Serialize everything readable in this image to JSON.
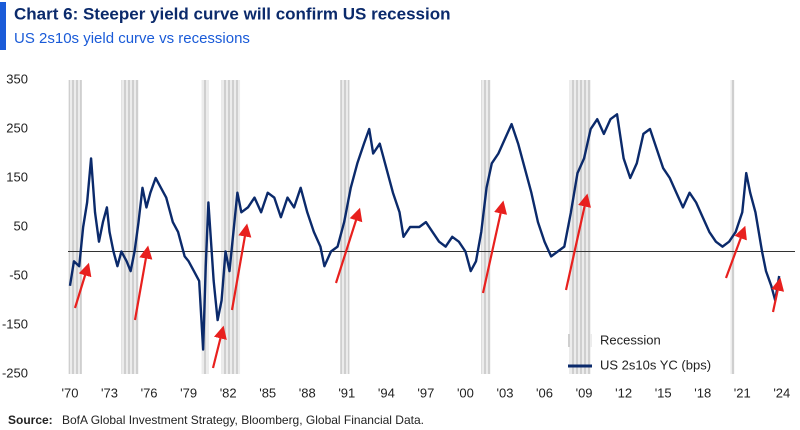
{
  "chart_data": {
    "type": "line",
    "title": "Chart 6: Steeper yield curve will confirm US recession",
    "subtitle": "US 2s10s yield curve vs recessions",
    "source_label": "Source:",
    "source": "BofA Global Investment Strategy, Bloomberg, Global Financial Data.",
    "xlim": [
      1969.85,
      2025.0
    ],
    "xticks": [
      {
        "value": 1970,
        "label": "'70"
      },
      {
        "value": 1973,
        "label": "'73"
      },
      {
        "value": 1976,
        "label": "'76"
      },
      {
        "value": 1979,
        "label": "'79"
      },
      {
        "value": 1982,
        "label": "'82"
      },
      {
        "value": 1985,
        "label": "'85"
      },
      {
        "value": 1988,
        "label": "'88"
      },
      {
        "value": 1991,
        "label": "'91"
      },
      {
        "value": 1994,
        "label": "'94"
      },
      {
        "value": 1997,
        "label": "'97"
      },
      {
        "value": 2000,
        "label": "'00"
      },
      {
        "value": 2003,
        "label": "'03"
      },
      {
        "value": 2006,
        "label": "'06"
      },
      {
        "value": 2009,
        "label": "'09"
      },
      {
        "value": 2012,
        "label": "'12"
      },
      {
        "value": 2015,
        "label": "'15"
      },
      {
        "value": 2018,
        "label": "'18"
      },
      {
        "value": 2021,
        "label": "'21"
      },
      {
        "value": 2024,
        "label": "'24"
      }
    ],
    "ylim": [
      -250,
      350
    ],
    "yticks": [
      -250,
      -150,
      -50,
      50,
      150,
      250,
      350
    ],
    "reference_line": 0,
    "recessions": {
      "name": "Recession",
      "color": "#d4d4d4",
      "periods": [
        [
          1969.9,
          1970.9
        ],
        [
          1973.9,
          1975.2
        ],
        [
          1980.0,
          1980.5
        ],
        [
          1981.5,
          1982.9
        ],
        [
          1990.5,
          1991.2
        ],
        [
          2001.2,
          2001.9
        ],
        [
          2007.9,
          2009.5
        ],
        [
          2020.1,
          2020.4
        ]
      ]
    },
    "x": [
      1970.0,
      1970.3,
      1970.7,
      1971.0,
      1971.3,
      1971.6,
      1971.9,
      1972.2,
      1972.5,
      1972.8,
      1973.0,
      1973.3,
      1973.6,
      1973.9,
      1974.3,
      1974.6,
      1974.9,
      1975.2,
      1975.5,
      1975.8,
      1976.1,
      1976.5,
      1976.9,
      1977.3,
      1977.8,
      1978.2,
      1978.7,
      1979.0,
      1979.4,
      1979.8,
      1980.1,
      1980.3,
      1980.5,
      1980.7,
      1980.9,
      1981.2,
      1981.5,
      1981.8,
      1982.1,
      1982.4,
      1982.7,
      1983.0,
      1983.5,
      1984.0,
      1984.5,
      1985.0,
      1985.5,
      1986.0,
      1986.5,
      1987.0,
      1987.5,
      1988.0,
      1988.5,
      1989.0,
      1989.3,
      1989.8,
      1990.3,
      1990.8,
      1991.3,
      1991.8,
      1992.3,
      1992.7,
      1993.0,
      1993.5,
      1994.0,
      1994.5,
      1995.0,
      1995.3,
      1995.8,
      1996.5,
      1997.0,
      1997.5,
      1998.0,
      1998.5,
      1999.0,
      1999.5,
      2000.0,
      2000.4,
      2000.8,
      2001.2,
      2001.6,
      2002.0,
      2002.5,
      2003.0,
      2003.5,
      2004.0,
      2004.5,
      2005.0,
      2005.5,
      2006.0,
      2006.5,
      2007.0,
      2007.5,
      2008.0,
      2008.5,
      2009.0,
      2009.5,
      2010.0,
      2010.5,
      2011.0,
      2011.5,
      2012.0,
      2012.5,
      2013.0,
      2013.5,
      2014.0,
      2014.5,
      2015.0,
      2015.5,
      2016.0,
      2016.5,
      2017.0,
      2017.5,
      2018.0,
      2018.5,
      2019.0,
      2019.5,
      2020.0,
      2020.5,
      2021.0,
      2021.3,
      2021.6,
      2022.0,
      2022.5,
      2022.8,
      2023.2,
      2023.5,
      2023.8
    ],
    "series": [
      {
        "name": "US 2s10s YC (bps)",
        "color": "#0b2a6b",
        "values": [
          -70,
          -20,
          -30,
          50,
          100,
          190,
          80,
          20,
          60,
          90,
          40,
          0,
          -30,
          0,
          -20,
          -40,
          0,
          60,
          130,
          90,
          120,
          150,
          130,
          110,
          60,
          40,
          -10,
          -20,
          -40,
          -60,
          -200,
          -30,
          100,
          20,
          -60,
          -140,
          -100,
          0,
          -40,
          40,
          120,
          80,
          90,
          110,
          80,
          120,
          110,
          70,
          110,
          90,
          130,
          80,
          40,
          10,
          -30,
          0,
          10,
          60,
          130,
          180,
          220,
          250,
          200,
          220,
          170,
          120,
          80,
          30,
          50,
          50,
          60,
          40,
          20,
          10,
          30,
          20,
          0,
          -40,
          -20,
          40,
          130,
          180,
          200,
          230,
          260,
          220,
          170,
          120,
          60,
          20,
          -10,
          0,
          10,
          80,
          160,
          190,
          250,
          270,
          240,
          270,
          280,
          190,
          150,
          180,
          240,
          250,
          210,
          170,
          150,
          120,
          90,
          120,
          100,
          70,
          40,
          20,
          10,
          20,
          40,
          80,
          160,
          120,
          80,
          0,
          -40,
          -70,
          -100,
          -50
        ]
      }
    ]
  }
}
